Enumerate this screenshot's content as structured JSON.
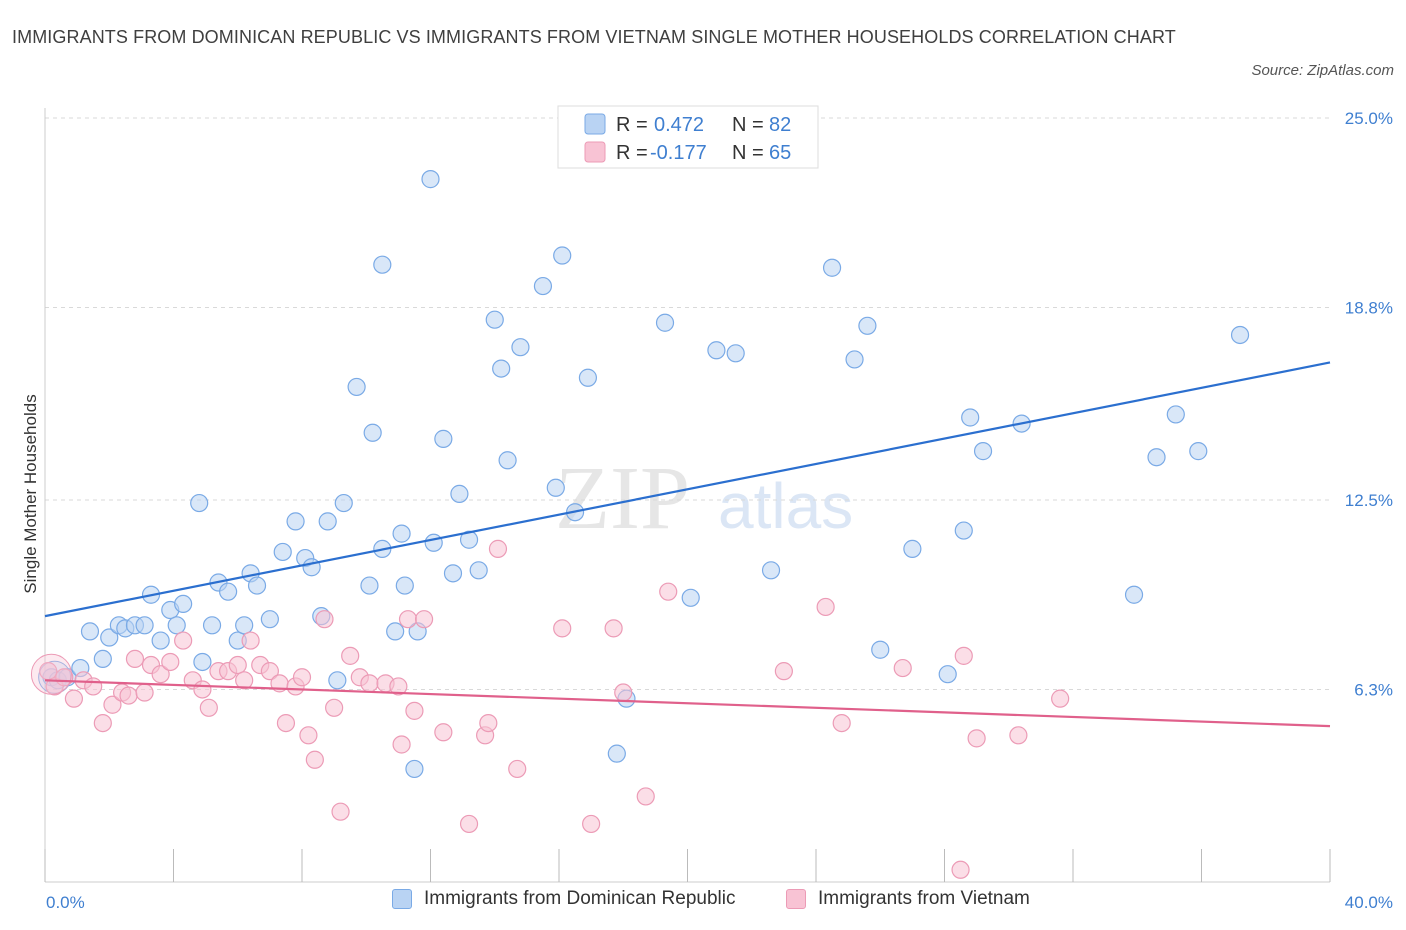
{
  "title": "IMMIGRANTS FROM DOMINICAN REPUBLIC VS IMMIGRANTS FROM VIETNAM SINGLE MOTHER HOUSEHOLDS CORRELATION CHART",
  "source": "Source: ZipAtlas.com",
  "watermark": {
    "zip": "ZIP",
    "atlas": "atlas"
  },
  "legend_top": {
    "rows": [
      {
        "r_label": "R =",
        "r_value": "0.472",
        "n_label": "N =",
        "n_value": "82"
      },
      {
        "r_label": "R =",
        "r_value": "-0.177",
        "n_label": "N =",
        "n_value": "65"
      }
    ]
  },
  "colors": {
    "blue_fill": "#b9d3f3",
    "blue_stroke": "#7aaae6",
    "blue_line": "#2b6fcf",
    "pink_fill": "#f8c3d4",
    "pink_stroke": "#ec9bb6",
    "pink_line": "#e0608b",
    "grid": "#d9d9d9",
    "tick_text": "#3f7fd0"
  },
  "chart_data": {
    "type": "scatter",
    "title": "IMMIGRANTS FROM DOMINICAN REPUBLIC VS IMMIGRANTS FROM VIETNAM SINGLE MOTHER HOUSEHOLDS CORRELATION CHART",
    "xlabel": "",
    "ylabel": "Single Mother Households",
    "xlim": [
      0,
      40
    ],
    "ylim": [
      0,
      25.0
    ],
    "x_tick_labels": [
      "0.0%",
      "40.0%"
    ],
    "y_ticks": [
      6.3,
      12.5,
      18.8,
      25.0
    ],
    "y_tick_labels": [
      "6.3%",
      "12.5%",
      "18.8%",
      "25.0%"
    ],
    "grid": "horizontal dashed",
    "legend_placement": "top-center and bottom",
    "series": [
      {
        "name": "Immigrants from Dominican Republic",
        "R": 0.472,
        "N": 82,
        "trend": {
          "x": [
            0,
            40
          ],
          "y": [
            8.7,
            17.0
          ]
        },
        "points": [
          [
            0.2,
            6.7
          ],
          [
            0.4,
            6.6
          ],
          [
            0.7,
            6.7
          ],
          [
            1.1,
            7.0
          ],
          [
            1.4,
            8.2
          ],
          [
            1.8,
            7.3
          ],
          [
            2.0,
            8.0
          ],
          [
            2.3,
            8.4
          ],
          [
            2.5,
            8.3
          ],
          [
            2.8,
            8.4
          ],
          [
            3.1,
            8.4
          ],
          [
            3.3,
            9.4
          ],
          [
            3.6,
            7.9
          ],
          [
            3.9,
            8.9
          ],
          [
            4.1,
            8.4
          ],
          [
            4.3,
            9.1
          ],
          [
            4.8,
            12.4
          ],
          [
            4.9,
            7.2
          ],
          [
            5.2,
            8.4
          ],
          [
            5.4,
            9.8
          ],
          [
            5.7,
            9.5
          ],
          [
            6.0,
            7.9
          ],
          [
            6.2,
            8.4
          ],
          [
            6.4,
            10.1
          ],
          [
            6.6,
            9.7
          ],
          [
            7.0,
            8.6
          ],
          [
            7.4,
            10.8
          ],
          [
            7.8,
            11.8
          ],
          [
            8.1,
            10.6
          ],
          [
            8.3,
            10.3
          ],
          [
            8.6,
            8.7
          ],
          [
            8.8,
            11.8
          ],
          [
            9.1,
            6.6
          ],
          [
            9.3,
            12.4
          ],
          [
            9.7,
            16.2
          ],
          [
            10.1,
            9.7
          ],
          [
            10.2,
            14.7
          ],
          [
            10.5,
            10.9
          ],
          [
            10.5,
            20.2
          ],
          [
            10.9,
            8.2
          ],
          [
            11.1,
            11.4
          ],
          [
            11.2,
            9.7
          ],
          [
            11.6,
            8.2
          ],
          [
            12.0,
            23.0
          ],
          [
            12.1,
            11.1
          ],
          [
            12.4,
            14.5
          ],
          [
            12.7,
            10.1
          ],
          [
            12.9,
            12.7
          ],
          [
            13.2,
            11.2
          ],
          [
            13.5,
            10.2
          ],
          [
            14.0,
            18.4
          ],
          [
            14.2,
            16.8
          ],
          [
            14.4,
            13.8
          ],
          [
            14.8,
            17.5
          ],
          [
            15.5,
            19.5
          ],
          [
            15.9,
            12.9
          ],
          [
            16.1,
            20.5
          ],
          [
            16.5,
            12.1
          ],
          [
            16.9,
            16.5
          ],
          [
            17.8,
            4.2
          ],
          [
            18.1,
            6.0
          ],
          [
            19.3,
            18.3
          ],
          [
            20.1,
            9.3
          ],
          [
            20.9,
            17.4
          ],
          [
            21.5,
            17.3
          ],
          [
            22.6,
            10.2
          ],
          [
            24.5,
            20.1
          ],
          [
            25.2,
            17.1
          ],
          [
            25.6,
            18.2
          ],
          [
            26.0,
            7.6
          ],
          [
            27.0,
            10.9
          ],
          [
            28.1,
            6.8
          ],
          [
            28.6,
            11.5
          ],
          [
            28.8,
            15.2
          ],
          [
            29.2,
            14.1
          ],
          [
            30.4,
            15.0
          ],
          [
            33.9,
            9.4
          ],
          [
            34.6,
            13.9
          ],
          [
            35.2,
            15.3
          ],
          [
            35.9,
            14.1
          ],
          [
            37.2,
            17.9
          ],
          [
            11.5,
            3.7
          ]
        ]
      },
      {
        "name": "Immigrants from Vietnam",
        "R": -0.177,
        "N": 65,
        "trend": {
          "x": [
            0,
            40
          ],
          "y": [
            6.6,
            5.1
          ]
        },
        "points": [
          [
            0.1,
            6.9
          ],
          [
            0.3,
            6.4
          ],
          [
            0.6,
            6.7
          ],
          [
            0.9,
            6.0
          ],
          [
            1.2,
            6.6
          ],
          [
            1.5,
            6.4
          ],
          [
            1.8,
            5.2
          ],
          [
            2.1,
            5.8
          ],
          [
            2.4,
            6.2
          ],
          [
            2.6,
            6.1
          ],
          [
            2.8,
            7.3
          ],
          [
            3.1,
            6.2
          ],
          [
            3.3,
            7.1
          ],
          [
            3.6,
            6.8
          ],
          [
            3.9,
            7.2
          ],
          [
            4.3,
            7.9
          ],
          [
            4.6,
            6.6
          ],
          [
            4.9,
            6.3
          ],
          [
            5.1,
            5.7
          ],
          [
            5.4,
            6.9
          ],
          [
            5.7,
            6.9
          ],
          [
            6.0,
            7.1
          ],
          [
            6.2,
            6.6
          ],
          [
            6.4,
            7.9
          ],
          [
            6.7,
            7.1
          ],
          [
            7.0,
            6.9
          ],
          [
            7.3,
            6.5
          ],
          [
            7.5,
            5.2
          ],
          [
            7.8,
            6.4
          ],
          [
            8.0,
            6.7
          ],
          [
            8.2,
            4.8
          ],
          [
            8.4,
            4.0
          ],
          [
            8.7,
            8.6
          ],
          [
            9.0,
            5.7
          ],
          [
            9.2,
            2.3
          ],
          [
            9.5,
            7.4
          ],
          [
            9.8,
            6.7
          ],
          [
            10.1,
            6.5
          ],
          [
            10.6,
            6.5
          ],
          [
            11.1,
            4.5
          ],
          [
            11.3,
            8.6
          ],
          [
            11.5,
            5.6
          ],
          [
            11.8,
            8.6
          ],
          [
            12.4,
            4.9
          ],
          [
            13.2,
            1.9
          ],
          [
            13.7,
            4.8
          ],
          [
            13.8,
            5.2
          ],
          [
            14.1,
            10.9
          ],
          [
            14.7,
            3.7
          ],
          [
            16.1,
            8.3
          ],
          [
            17.0,
            1.9
          ],
          [
            17.7,
            8.3
          ],
          [
            18.0,
            6.2
          ],
          [
            18.7,
            2.8
          ],
          [
            19.4,
            9.5
          ],
          [
            23.0,
            6.9
          ],
          [
            24.3,
            9.0
          ],
          [
            24.8,
            5.2
          ],
          [
            26.7,
            7.0
          ],
          [
            28.5,
            0.4
          ],
          [
            28.6,
            7.4
          ],
          [
            29.0,
            4.7
          ],
          [
            30.3,
            4.8
          ],
          [
            31.6,
            6.0
          ],
          [
            11.0,
            6.4
          ]
        ]
      }
    ]
  },
  "bottom_legend": [
    {
      "label": "Immigrants from Dominican Republic"
    },
    {
      "label": "Immigrants from Vietnam"
    }
  ]
}
